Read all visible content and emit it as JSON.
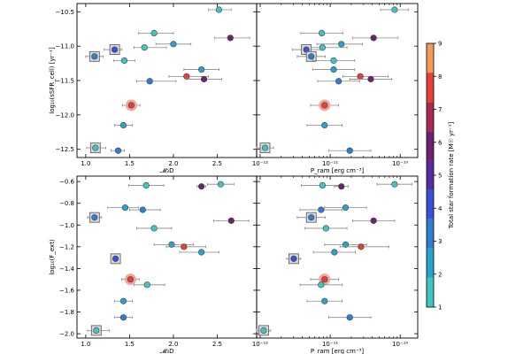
{
  "chart_data": [
    {
      "panel": "top-left",
      "type": "scatter",
      "xscale": "linear",
      "xlim": [
        0.9,
        2.95
      ],
      "ylim": [
        -12.62,
        -10.38
      ],
      "xticks": [
        1.0,
        1.5,
        2.0,
        2.5
      ],
      "xtick_labels": [
        "1.0",
        "1.5",
        "2.0",
        "2.5"
      ],
      "yticks": [
        -10.5,
        -11.0,
        -11.5,
        -12.0,
        -12.5
      ],
      "ytick_labels": [
        "−10.5",
        "−11.0",
        "−11.5",
        "−12.0",
        "−12.5"
      ],
      "xlabel": "𝓜₃D",
      "ylabel": "log₁₀(sSFR_cell) [yr⁻¹]",
      "points": [
        {
          "x": 2.52,
          "y": -10.47,
          "xerr": [
            0.12,
            0.14
          ],
          "sfr": 1.8
        },
        {
          "x": 1.78,
          "y": -10.81,
          "xerr": [
            0.18,
            0.22
          ],
          "sfr": 1.8
        },
        {
          "x": 2.65,
          "y": -10.88,
          "xerr": [
            0.18,
            0.22
          ],
          "sfr": 5.8
        },
        {
          "x": 2.0,
          "y": -10.97,
          "xerr": [
            0.2,
            0.2
          ],
          "sfr": 2.0
        },
        {
          "x": 1.67,
          "y": -11.02,
          "xerr": [
            0.12,
            0.25
          ],
          "sfr": 1.6
        },
        {
          "x": 1.33,
          "y": -11.05,
          "xerr": [
            0.12,
            0.08
          ],
          "sfr": 4.2,
          "marker": "square"
        },
        {
          "x": 1.1,
          "y": -11.15,
          "xerr": [
            0.1,
            0.1
          ],
          "sfr": 3.6,
          "marker": "square"
        },
        {
          "x": 1.44,
          "y": -11.21,
          "xerr": [
            0.12,
            0.12
          ],
          "sfr": 1.4
        },
        {
          "x": 2.32,
          "y": -11.34,
          "xerr": [
            0.2,
            0.2
          ],
          "sfr": 2.4
        },
        {
          "x": 2.15,
          "y": -11.44,
          "xerr": [
            0.2,
            0.25
          ],
          "sfr": 7.6
        },
        {
          "x": 2.35,
          "y": -11.48,
          "xerr": [
            0.2,
            0.2
          ],
          "sfr": 5.5
        },
        {
          "x": 1.73,
          "y": -11.51,
          "xerr": [
            0.15,
            0.3
          ],
          "sfr": 3.3
        },
        {
          "x": 1.52,
          "y": -11.86,
          "xerr": [
            0.1,
            0.1
          ],
          "sfr": 7.4,
          "halo": true
        },
        {
          "x": 1.43,
          "y": -12.15,
          "xerr": [
            0.1,
            0.1
          ],
          "sfr": 2.6
        },
        {
          "x": 1.11,
          "y": -12.48,
          "xerr": [
            0.1,
            0.12
          ],
          "sfr": 1.4,
          "marker": "square"
        },
        {
          "x": 1.37,
          "y": -12.52,
          "xerr": [
            0.08,
            0.07
          ],
          "sfr": 3.1
        }
      ]
    },
    {
      "panel": "top-right",
      "type": "scatter",
      "xscale": "log",
      "xlim": [
        -12.05,
        -9.75
      ],
      "ylim": [
        -12.62,
        -10.38
      ],
      "xticks": [
        -12,
        -11,
        -10
      ],
      "xtick_labels": [
        "10⁻¹²",
        "10⁻¹¹",
        "10⁻¹⁰"
      ],
      "yticks": [
        -10.5,
        -11.0,
        -11.5,
        -12.0,
        -12.5
      ],
      "ytick_labels": [
        "",
        "",
        "",
        "",
        ""
      ],
      "xlabel": "P_ram [erg cm⁻³]",
      "ylabel": "",
      "points": [
        {
          "x": -10.08,
          "y": -10.47,
          "xerr": [
            0.2,
            0.2
          ],
          "sfr": 1.8
        },
        {
          "x": -11.12,
          "y": -10.81,
          "xerr": [
            0.3,
            0.3
          ],
          "sfr": 1.8
        },
        {
          "x": -10.38,
          "y": -10.88,
          "xerr": [
            0.3,
            0.35
          ],
          "sfr": 5.8
        },
        {
          "x": -10.84,
          "y": -10.97,
          "xerr": [
            0.35,
            0.3
          ],
          "sfr": 2.0
        },
        {
          "x": -11.11,
          "y": -11.02,
          "xerr": [
            0.3,
            0.35
          ],
          "sfr": 1.6
        },
        {
          "x": -11.34,
          "y": -11.05,
          "xerr": [
            0.2,
            0.2
          ],
          "sfr": 4.2,
          "marker": "square"
        },
        {
          "x": -11.27,
          "y": -11.15,
          "xerr": [
            0.2,
            0.2
          ],
          "sfr": 3.6,
          "marker": "square"
        },
        {
          "x": -10.95,
          "y": -11.21,
          "xerr": [
            0.3,
            0.3
          ],
          "sfr": 1.4
        },
        {
          "x": -10.95,
          "y": -11.34,
          "xerr": [
            0.3,
            0.3
          ],
          "sfr": 2.4
        },
        {
          "x": -10.57,
          "y": -11.44,
          "xerr": [
            0.25,
            0.4
          ],
          "sfr": 7.6
        },
        {
          "x": -10.42,
          "y": -11.48,
          "xerr": [
            0.3,
            0.3
          ],
          "sfr": 5.5
        },
        {
          "x": -10.88,
          "y": -11.51,
          "xerr": [
            0.3,
            0.3
          ],
          "sfr": 3.3
        },
        {
          "x": -11.08,
          "y": -11.86,
          "xerr": [
            0.2,
            0.2
          ],
          "sfr": 7.4,
          "halo": true
        },
        {
          "x": -11.08,
          "y": -12.15,
          "xerr": [
            0.25,
            0.25
          ],
          "sfr": 2.6
        },
        {
          "x": -11.93,
          "y": -12.48,
          "xerr": [
            0.12,
            0.12
          ],
          "sfr": 1.4,
          "marker": "square"
        },
        {
          "x": -10.72,
          "y": -12.52,
          "xerr": [
            0.3,
            0.3
          ],
          "sfr": 3.1
        }
      ]
    },
    {
      "panel": "bottom-left",
      "type": "scatter",
      "xscale": "linear",
      "xlim": [
        0.9,
        2.95
      ],
      "ylim": [
        -2.04,
        -0.55
      ],
      "xticks": [
        1.0,
        1.5,
        2.0,
        2.5
      ],
      "xtick_labels": [
        "1.0",
        "1.5",
        "2.0",
        "2.5"
      ],
      "yticks": [
        -0.6,
        -0.8,
        -1.0,
        -1.2,
        -1.4,
        -1.6,
        -1.8,
        -2.0
      ],
      "ytick_labels": [
        "−0.6",
        "−0.8",
        "−1.0",
        "−1.2",
        "−1.4",
        "−1.6",
        "−1.8",
        "−2.0"
      ],
      "xlabel": "𝓜₃D",
      "ylabel": "log₁₀(F_ext)",
      "points": [
        {
          "x": 1.69,
          "y": -0.635,
          "xerr": [
            0.2,
            0.2
          ],
          "sfr": 1.8
        },
        {
          "x": 2.54,
          "y": -0.625,
          "xerr": [
            0.15,
            0.15
          ],
          "sfr": 1.8
        },
        {
          "x": 2.32,
          "y": -0.645,
          "xerr": [
            0.05,
            0.05
          ],
          "sfr": 5.8
        },
        {
          "x": 1.45,
          "y": -0.84,
          "xerr": [
            0.2,
            0.15
          ],
          "sfr": 2.0
        },
        {
          "x": 1.65,
          "y": -0.86,
          "xerr": [
            0.15,
            0.2
          ],
          "sfr": 3.3
        },
        {
          "x": 1.1,
          "y": -0.93,
          "xerr": [
            0.08,
            0.08
          ],
          "sfr": 3.6,
          "marker": "square"
        },
        {
          "x": 2.66,
          "y": -0.96,
          "xerr": [
            0.2,
            0.2
          ],
          "sfr": 5.5
        },
        {
          "x": 1.78,
          "y": -1.03,
          "xerr": [
            0.2,
            0.2
          ],
          "sfr": 1.6
        },
        {
          "x": 1.98,
          "y": -1.18,
          "xerr": [
            0.2,
            0.25
          ],
          "sfr": 2.0
        },
        {
          "x": 2.12,
          "y": -1.2,
          "xerr": [
            0.2,
            0.25
          ],
          "sfr": 7.6
        },
        {
          "x": 2.32,
          "y": -1.25,
          "xerr": [
            0.25,
            0.2
          ],
          "sfr": 2.4
        },
        {
          "x": 1.34,
          "y": -1.31,
          "xerr": [
            0.05,
            0.05
          ],
          "sfr": 4.2,
          "marker": "square"
        },
        {
          "x": 1.51,
          "y": -1.5,
          "xerr": [
            0.1,
            0.1
          ],
          "sfr": 7.4,
          "halo": true
        },
        {
          "x": 1.7,
          "y": -1.55,
          "xerr": [
            0.15,
            0.2
          ],
          "sfr": 1.4
        },
        {
          "x": 1.43,
          "y": -1.7,
          "xerr": [
            0.1,
            0.1
          ],
          "sfr": 2.6
        },
        {
          "x": 1.43,
          "y": -1.85,
          "xerr": [
            0.1,
            0.1
          ],
          "sfr": 3.1
        },
        {
          "x": 1.12,
          "y": -1.97,
          "xerr": [
            0.1,
            0.15
          ],
          "sfr": 1.4,
          "marker": "square"
        }
      ]
    },
    {
      "panel": "bottom-right",
      "type": "scatter",
      "xscale": "log",
      "xlim": [
        -12.05,
        -9.75
      ],
      "ylim": [
        -2.04,
        -0.55
      ],
      "xticks": [
        -12,
        -11,
        -10
      ],
      "xtick_labels": [
        "10⁻¹²",
        "10⁻¹¹",
        "10⁻¹⁰"
      ],
      "yticks": [
        -0.6,
        -0.8,
        -1.0,
        -1.2,
        -1.4,
        -1.6,
        -1.8,
        -2.0
      ],
      "ytick_labels": [
        "",
        "",
        "",
        "",
        "",
        "",
        "",
        ""
      ],
      "xlabel": "P_ram [erg cm⁻³]",
      "ylabel": "",
      "points": [
        {
          "x": -11.11,
          "y": -0.635,
          "xerr": [
            0.3,
            0.3
          ],
          "sfr": 1.8
        },
        {
          "x": -10.08,
          "y": -0.625,
          "xerr": [
            0.25,
            0.25
          ],
          "sfr": 1.8
        },
        {
          "x": -10.84,
          "y": -0.645,
          "xerr": [
            0.1,
            0.1
          ],
          "sfr": 5.8
        },
        {
          "x": -10.78,
          "y": -0.84,
          "xerr": [
            0.3,
            0.3
          ],
          "sfr": 2.0
        },
        {
          "x": -11.13,
          "y": -0.86,
          "xerr": [
            0.3,
            0.3
          ],
          "sfr": 3.3
        },
        {
          "x": -11.27,
          "y": -0.93,
          "xerr": [
            0.2,
            0.2
          ],
          "sfr": 3.6,
          "marker": "square"
        },
        {
          "x": -10.38,
          "y": -0.96,
          "xerr": [
            0.3,
            0.3
          ],
          "sfr": 5.5
        },
        {
          "x": -11.06,
          "y": -1.03,
          "xerr": [
            0.3,
            0.3
          ],
          "sfr": 1.6
        },
        {
          "x": -10.78,
          "y": -1.18,
          "xerr": [
            0.3,
            0.3
          ],
          "sfr": 2.0
        },
        {
          "x": -10.56,
          "y": -1.2,
          "xerr": [
            0.3,
            0.4
          ],
          "sfr": 7.6
        },
        {
          "x": -10.94,
          "y": -1.25,
          "xerr": [
            0.3,
            0.3
          ],
          "sfr": 2.4
        },
        {
          "x": -11.52,
          "y": -1.31,
          "xerr": [
            0.1,
            0.1
          ],
          "sfr": 4.2,
          "marker": "square"
        },
        {
          "x": -11.08,
          "y": -1.5,
          "xerr": [
            0.2,
            0.2
          ],
          "sfr": 7.4,
          "halo": true
        },
        {
          "x": -11.13,
          "y": -1.55,
          "xerr": [
            0.3,
            0.3
          ],
          "sfr": 1.4
        },
        {
          "x": -11.08,
          "y": -1.7,
          "xerr": [
            0.25,
            0.25
          ],
          "sfr": 2.6
        },
        {
          "x": -10.72,
          "y": -1.85,
          "xerr": [
            0.3,
            0.3
          ],
          "sfr": 3.1
        },
        {
          "x": -11.95,
          "y": -1.97,
          "xerr": [
            0.1,
            0.1
          ],
          "sfr": 1.4,
          "marker": "square"
        }
      ]
    }
  ],
  "colorbar": {
    "label": "Total star formation rate [M☉ yr⁻¹]",
    "range": [
      1,
      9
    ],
    "ticks": [
      1,
      2,
      3,
      4,
      5,
      6,
      7,
      8,
      9
    ],
    "tick_labels": [
      "1",
      "2",
      "3",
      "4",
      "5",
      "6",
      "7",
      "8",
      "9"
    ],
    "colors": [
      "#3ec7c2",
      "#2aa3cc",
      "#2f7fd1",
      "#3b50d8",
      "#5a2ca0",
      "#6b236f",
      "#a9294f",
      "#e53f3a",
      "#f59b59"
    ]
  },
  "style": {
    "errorbar_color": "#8a8a8a",
    "marker_edge": "#444444",
    "halo_color": "#f3a59e",
    "square_fill": "#d9d9d9"
  }
}
